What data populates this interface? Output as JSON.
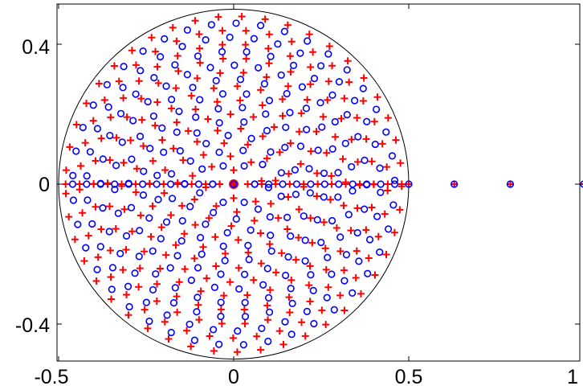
{
  "chart_data": {
    "type": "scatter",
    "title": "",
    "xlabel": "",
    "ylabel": "",
    "xlim": [
      -0.52,
      1.0
    ],
    "ylim": [
      -0.5,
      0.5
    ],
    "x_ticks": [
      "-0.5",
      "0",
      "0.5",
      "1"
    ],
    "y_ticks": [
      "0.4",
      "0",
      "-0.4"
    ],
    "grid": false,
    "legend": "none",
    "circle": {
      "center": [
        0,
        0
      ],
      "radius": 0.5
    },
    "series": [
      {
        "marker": "circle-open",
        "color": "#0000ff",
        "ring_radii": [
          0.06,
          0.1,
          0.14,
          0.18,
          0.22,
          0.26,
          0.3,
          0.34,
          0.38,
          0.42,
          0.46
        ],
        "points_per_ring": [
          6,
          9,
          13,
          16,
          20,
          24,
          27,
          31,
          34,
          38,
          41
        ],
        "ring_phase_step": 0.6,
        "axis_points": [
          [
            0.5,
            0
          ],
          [
            0.63,
            0
          ],
          [
            0.79,
            0
          ],
          [
            1.0,
            0
          ]
        ]
      },
      {
        "marker": "plus",
        "color": "#ff0000",
        "ring_radii": [
          0.04,
          0.08,
          0.12,
          0.16,
          0.2,
          0.24,
          0.28,
          0.32,
          0.36,
          0.4,
          0.44,
          0.48
        ],
        "points_per_ring": [
          4,
          8,
          11,
          15,
          19,
          23,
          26,
          30,
          34,
          38,
          41,
          45
        ],
        "ring_phase_step": 0.9,
        "axis_points": [
          [
            0.5,
            0
          ],
          [
            0.63,
            0
          ],
          [
            0.79,
            0
          ],
          [
            1.0,
            0
          ]
        ]
      }
    ]
  }
}
